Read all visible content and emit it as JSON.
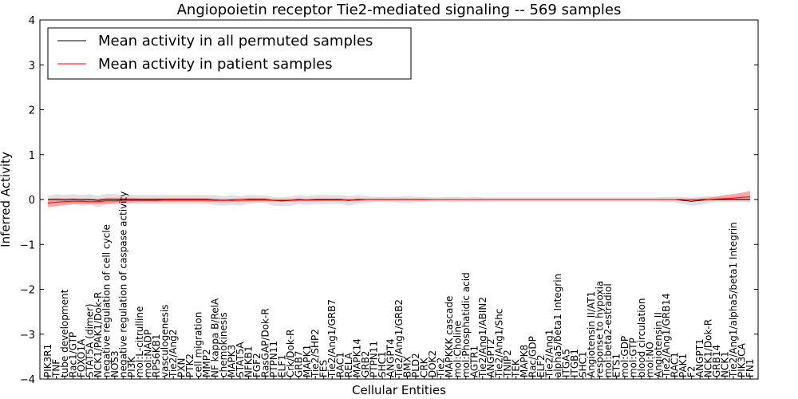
{
  "chart_data": {
    "type": "line",
    "title": "Angiopoietin receptor Tie2-mediated signaling -- 569 samples",
    "xlabel": "Cellular Entities",
    "ylabel": "Inferred Activity",
    "ylim": [
      -4,
      4
    ],
    "yticks": [
      4,
      3,
      2,
      1,
      0,
      -1,
      -2,
      -3,
      -4
    ],
    "ytick_labels": [
      "4",
      "3",
      "2",
      "1",
      "0",
      "−1",
      "−2",
      "−3",
      "−4"
    ],
    "legend": {
      "placement": "top-left",
      "entries": [
        {
          "label": "Mean activity in all permuted samples",
          "color": "#000000"
        },
        {
          "label": "Mean activity in patient samples",
          "color": "#ff0000"
        }
      ]
    },
    "colors": {
      "permuted_line": "#000000",
      "patient_line": "#ff0000",
      "permuted_band": "#c8c8c8",
      "patient_band": "#ff8080"
    },
    "categories": [
      "PIK3R1",
      "TNF",
      "tube development",
      "Rac1/GTP",
      "FOXO1A",
      "STAT5A (dimer)",
      "NCK1/PAK1/Dok-R",
      "negative regulation of cell cycle",
      "NOS3",
      "negative regulation of caspase activity",
      "PI3K",
      "mol:L-citrulline",
      "mol:NADP",
      "RPS6KB1",
      "vasculogenesis",
      "Tie2/Ang2",
      "PXN",
      "PTK2",
      "cell migration",
      "MMP2",
      "NF kappa B/RelA",
      "chemokinesis",
      "MAPK3",
      "STAT5A",
      "NFKB1",
      "FGF2",
      "RasGAP/Dok-R",
      "PTPN11",
      "ELF1",
      "Crk/Dok-R",
      "GRB7",
      "MAPK1",
      "Tie2/SHP2",
      "FES",
      "Tie2/Ang1/GRB7",
      "RAC1",
      "RELA",
      "MAPK14",
      "GRB2",
      "PTPN11",
      "SHC1",
      "ANGPT4",
      "Tie2/Ang1/GRB2",
      "BMX",
      "PLD2",
      "CRK",
      "DOK2",
      "Tie2",
      "MAPKKK cascade",
      "mol:Choline",
      "mol:Phosphatidic acid",
      "AGTR1",
      "Tie2/Ang1/ABIN2",
      "ANGPT2",
      "Tie2/Ang1/Shc",
      "TNIP2",
      "TEK",
      "MAPK8",
      "Rac/GDP",
      "ELF2",
      "Tie2/Ang1",
      "alpha5/beta1 Integrin",
      "ITGA5",
      "ITGB1",
      "SHC1",
      "Angiotensin II/AT1",
      "response to hypoxia",
      "mol:beta2-estradiol",
      "ETS1",
      "mol:GDP",
      "mol:GTP",
      "blood circulation",
      "mol:NO",
      "Angiotensin II",
      "Tie2/Ang1/GRB14",
      "RAC1",
      "PAK1",
      "F2",
      "ANGPT1",
      "NCK1/Dok-R",
      "GRB14",
      "NCK1",
      "Tie2/Ang1/alpha5/beta1 Integrin",
      "PIK3CA",
      "FN1"
    ],
    "series": [
      {
        "name": "Mean activity in patient samples",
        "values": [
          -0.08,
          -0.06,
          -0.05,
          -0.04,
          -0.04,
          -0.05,
          -0.05,
          -0.03,
          -0.03,
          -0.02,
          -0.02,
          -0.02,
          -0.02,
          -0.02,
          -0.01,
          -0.01,
          -0.01,
          -0.01,
          -0.01,
          -0.01,
          -0.02,
          -0.02,
          -0.02,
          -0.01,
          -0.01,
          -0.01,
          -0.01,
          -0.02,
          -0.02,
          -0.02,
          -0.01,
          -0.01,
          -0.01,
          -0.01,
          -0.01,
          -0.01,
          -0.01,
          -0.01,
          0.0,
          0.0,
          0.0,
          0.0,
          0.0,
          0.0,
          0.0,
          0.0,
          0.0,
          0.0,
          0.0,
          0.0,
          0.0,
          0.0,
          0.0,
          0.0,
          0.0,
          0.0,
          0.0,
          0.0,
          0.0,
          0.0,
          0.0,
          0.0,
          0.0,
          0.0,
          0.0,
          0.0,
          0.0,
          0.0,
          0.0,
          0.0,
          0.0,
          0.0,
          0.0,
          0.0,
          0.0,
          0.0,
          0.0,
          0.0,
          0.0,
          0.0,
          0.01,
          0.02,
          0.03,
          0.05,
          0.06
        ],
        "lower": [
          -0.17,
          -0.15,
          -0.12,
          -0.1,
          -0.1,
          -0.1,
          -0.1,
          -0.1,
          -0.08,
          -0.08,
          -0.07,
          -0.06,
          -0.06,
          -0.06,
          -0.05,
          -0.05,
          -0.05,
          -0.05,
          -0.05,
          -0.05,
          -0.06,
          -0.07,
          -0.06,
          -0.05,
          -0.05,
          -0.04,
          -0.04,
          -0.05,
          -0.05,
          -0.05,
          -0.04,
          -0.04,
          -0.04,
          -0.03,
          -0.03,
          -0.03,
          -0.03,
          -0.03,
          -0.02,
          -0.02,
          -0.02,
          -0.02,
          -0.02,
          -0.02,
          -0.02,
          -0.02,
          -0.01,
          -0.01,
          -0.01,
          -0.01,
          -0.01,
          -0.01,
          -0.01,
          -0.01,
          -0.01,
          -0.01,
          -0.01,
          -0.01,
          -0.01,
          -0.01,
          -0.01,
          -0.01,
          -0.01,
          -0.01,
          -0.01,
          -0.01,
          -0.01,
          -0.01,
          -0.01,
          -0.01,
          -0.01,
          -0.01,
          -0.01,
          -0.01,
          -0.01,
          -0.01,
          -0.01,
          -0.02,
          -0.03,
          -0.03,
          -0.02,
          -0.02,
          -0.02,
          -0.02,
          -0.02
        ],
        "upper": [
          0.02,
          0.03,
          0.03,
          0.03,
          0.03,
          0.02,
          0.02,
          0.04,
          0.04,
          0.04,
          0.04,
          0.03,
          0.03,
          0.03,
          0.03,
          0.03,
          0.03,
          0.03,
          0.03,
          0.03,
          0.02,
          0.02,
          0.02,
          0.03,
          0.03,
          0.03,
          0.03,
          0.01,
          0.01,
          0.02,
          0.02,
          0.02,
          0.02,
          0.02,
          0.02,
          0.02,
          0.02,
          0.02,
          0.02,
          0.02,
          0.02,
          0.02,
          0.02,
          0.02,
          0.02,
          0.02,
          0.01,
          0.01,
          0.01,
          0.01,
          0.01,
          0.01,
          0.01,
          0.01,
          0.01,
          0.01,
          0.01,
          0.01,
          0.01,
          0.01,
          0.01,
          0.01,
          0.01,
          0.01,
          0.01,
          0.01,
          0.01,
          0.01,
          0.01,
          0.01,
          0.01,
          0.01,
          0.01,
          0.01,
          0.01,
          0.01,
          0.01,
          0.01,
          0.02,
          0.04,
          0.07,
          0.1,
          0.12,
          0.15,
          0.19
        ]
      },
      {
        "name": "Mean activity in all permuted samples",
        "values": [
          0.0,
          0.0,
          -0.01,
          0.0,
          -0.01,
          0.0,
          -0.02,
          0.0,
          0.0,
          0.0,
          0.0,
          0.0,
          0.0,
          0.0,
          0.0,
          0.0,
          0.0,
          0.0,
          0.0,
          0.0,
          -0.01,
          -0.02,
          -0.01,
          -0.01,
          0.0,
          0.0,
          0.0,
          -0.02,
          -0.03,
          -0.02,
          0.0,
          -0.01,
          0.0,
          0.0,
          0.0,
          0.0,
          -0.02,
          0.0,
          0.0,
          0.0,
          0.0,
          0.0,
          0.0,
          0.0,
          0.0,
          0.0,
          0.0,
          0.0,
          0.0,
          0.0,
          0.0,
          0.0,
          0.0,
          0.0,
          0.0,
          0.0,
          0.0,
          0.0,
          0.0,
          0.0,
          0.0,
          0.0,
          0.0,
          0.0,
          0.0,
          0.0,
          0.0,
          0.0,
          0.0,
          0.0,
          0.0,
          0.0,
          0.0,
          0.0,
          0.0,
          0.0,
          -0.02,
          -0.04,
          -0.02,
          0.0,
          0.0,
          0.0,
          0.0,
          0.0,
          0.0
        ],
        "lower": [
          -0.1,
          -0.12,
          -0.15,
          -0.11,
          -0.14,
          -0.12,
          -0.17,
          -0.12,
          -0.1,
          -0.12,
          -0.1,
          -0.1,
          -0.1,
          -0.1,
          -0.1,
          -0.1,
          -0.1,
          -0.1,
          -0.1,
          -0.1,
          -0.12,
          -0.14,
          -0.12,
          -0.14,
          -0.1,
          -0.08,
          -0.08,
          -0.14,
          -0.15,
          -0.14,
          -0.1,
          -0.12,
          -0.1,
          -0.1,
          -0.1,
          -0.1,
          -0.14,
          -0.1,
          -0.08,
          -0.06,
          -0.06,
          -0.06,
          -0.07,
          -0.08,
          -0.06,
          -0.06,
          -0.05,
          -0.05,
          -0.06,
          -0.06,
          -0.05,
          -0.06,
          -0.05,
          -0.05,
          -0.05,
          -0.05,
          -0.05,
          -0.05,
          -0.05,
          -0.05,
          -0.05,
          -0.05,
          -0.05,
          -0.05,
          -0.05,
          -0.05,
          -0.05,
          -0.05,
          -0.05,
          -0.05,
          -0.05,
          -0.05,
          -0.05,
          -0.05,
          -0.06,
          -0.06,
          -0.1,
          -0.14,
          -0.12,
          -0.08,
          -0.06,
          -0.06,
          -0.06,
          -0.06,
          -0.06
        ],
        "upper": [
          0.08,
          0.12,
          0.1,
          0.12,
          0.1,
          0.12,
          0.08,
          0.13,
          0.12,
          0.1,
          0.1,
          0.1,
          0.1,
          0.1,
          0.1,
          0.1,
          0.1,
          0.1,
          0.1,
          0.1,
          0.1,
          0.08,
          0.1,
          0.08,
          0.1,
          0.09,
          0.09,
          0.06,
          0.05,
          0.07,
          0.1,
          0.08,
          0.1,
          0.1,
          0.1,
          0.1,
          0.08,
          0.1,
          0.08,
          0.06,
          0.06,
          0.06,
          0.06,
          0.08,
          0.06,
          0.06,
          0.05,
          0.05,
          0.06,
          0.06,
          0.05,
          0.06,
          0.05,
          0.05,
          0.05,
          0.05,
          0.05,
          0.05,
          0.05,
          0.05,
          0.05,
          0.05,
          0.05,
          0.05,
          0.05,
          0.05,
          0.05,
          0.05,
          0.05,
          0.05,
          0.05,
          0.05,
          0.05,
          0.05,
          0.06,
          0.06,
          0.06,
          0.04,
          0.06,
          0.08,
          0.06,
          0.06,
          0.07,
          0.06,
          0.07
        ]
      }
    ]
  }
}
